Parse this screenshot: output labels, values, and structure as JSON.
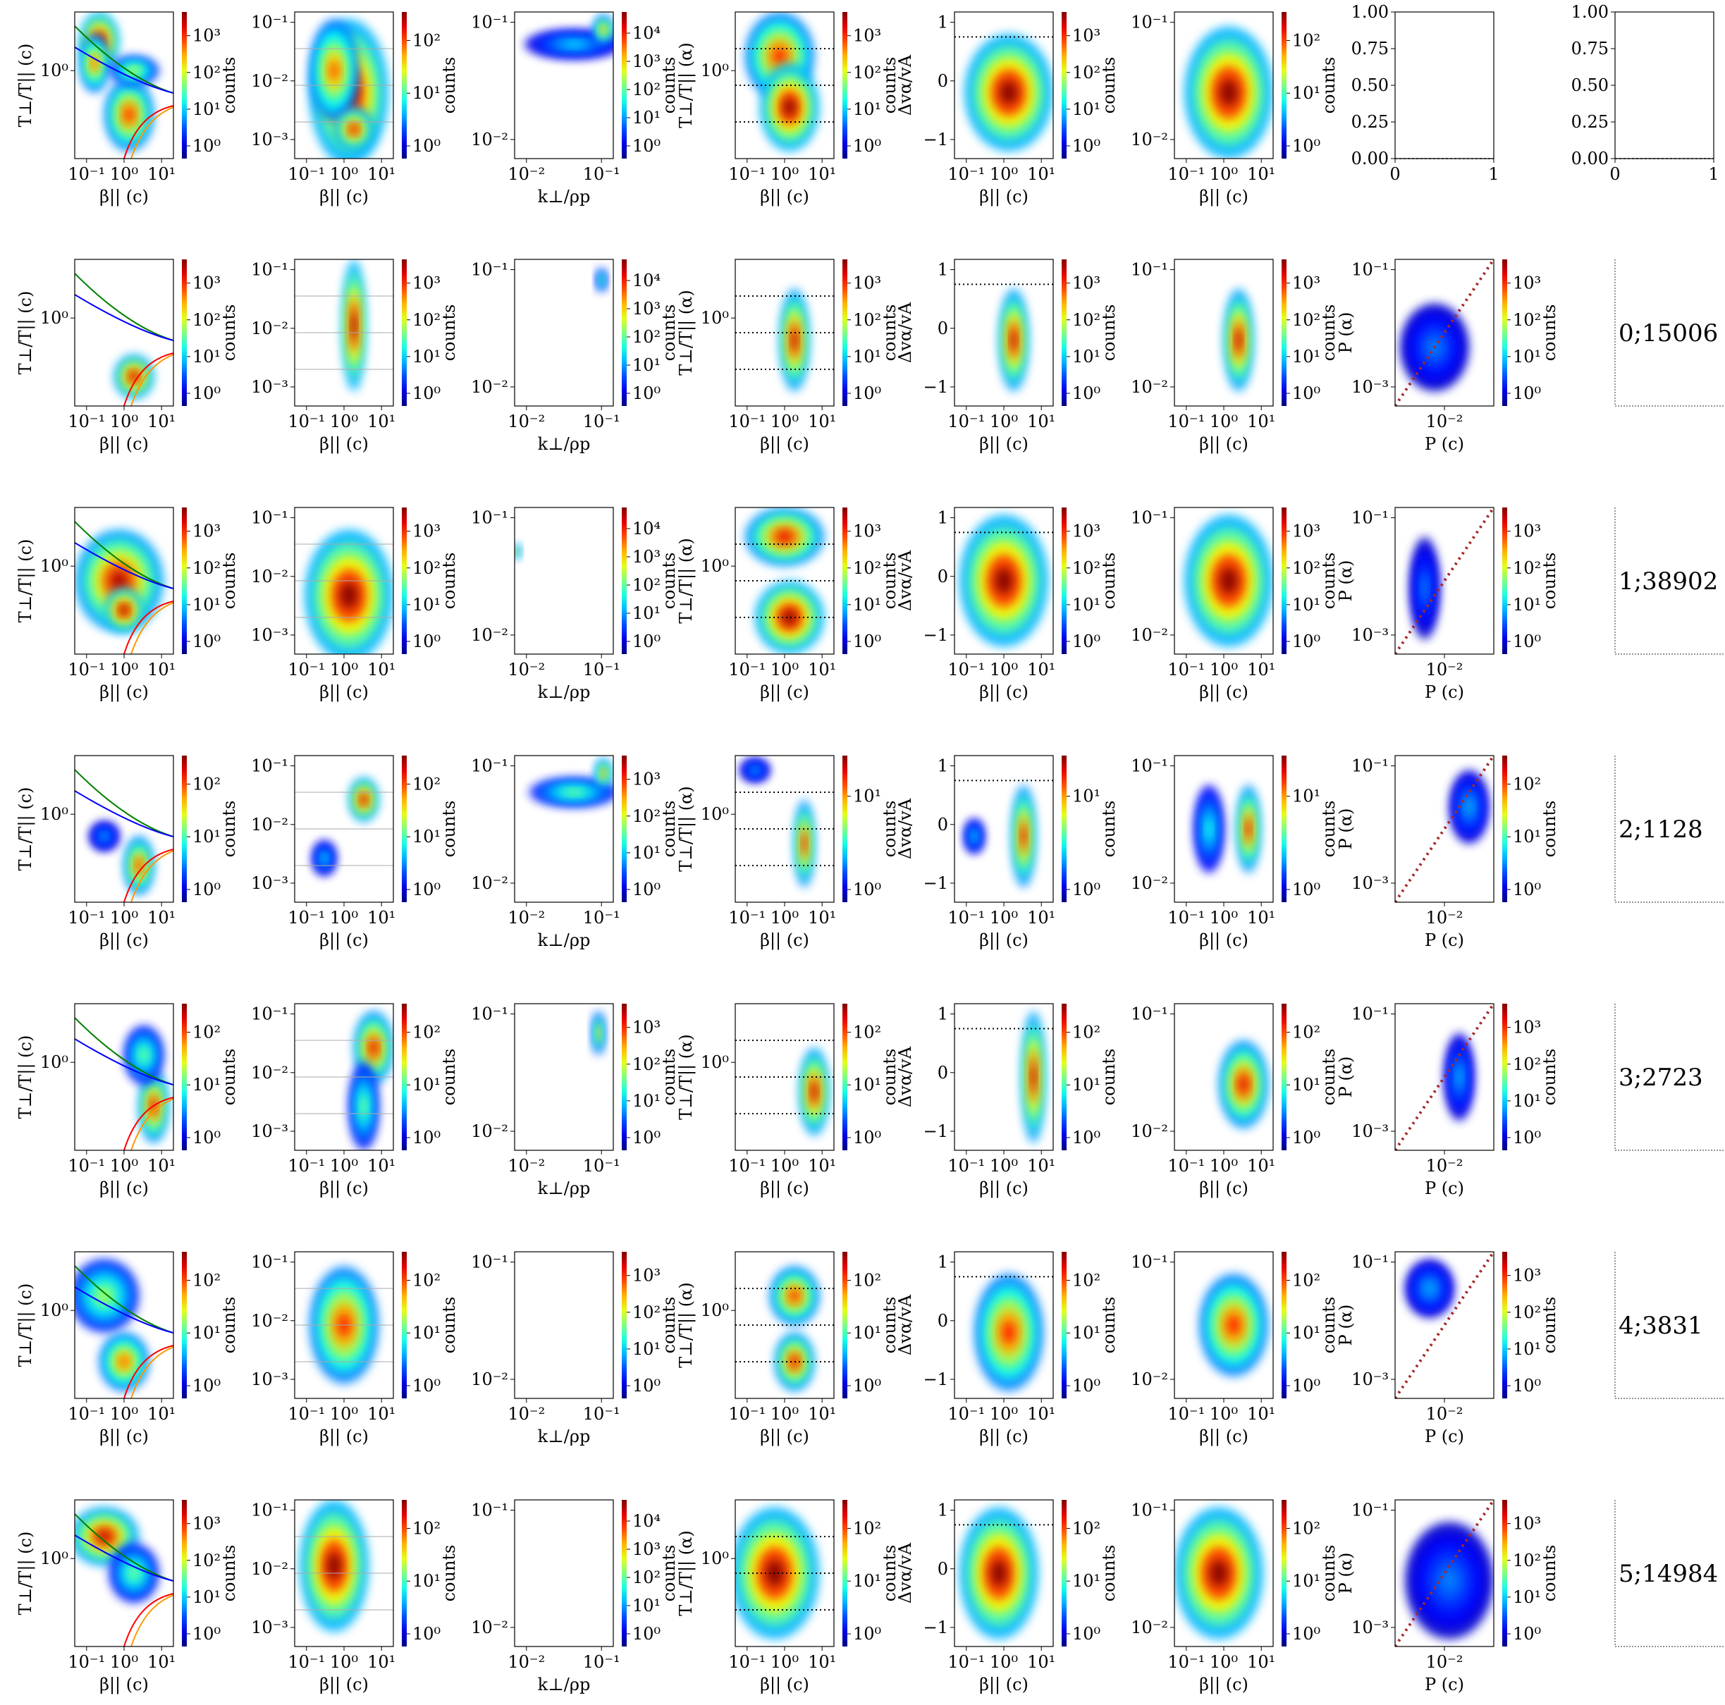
{
  "figure": {
    "row_labels": [
      "0;15006",
      "1;38902",
      "2;1128",
      "3;2723",
      "4;3831",
      "5;14984"
    ]
  },
  "chart_data": {
    "type": "heatmap",
    "colormap": "jet",
    "grid": false,
    "columns": [
      {
        "xlabel": "β|| (c)",
        "ylabel": "T⊥/T|| (c)",
        "xticks": [
          "10⁻¹",
          "10⁰",
          "10¹"
        ],
        "yticks": [
          "10⁰"
        ],
        "colorbar_label": "counts",
        "overlay": "instability threshold curves (green, blue, red, orange)"
      },
      {
        "xlabel": "β|| (c)",
        "ylabel": "",
        "xticks": [
          "10⁻¹",
          "10⁰",
          "10¹"
        ],
        "yticks": [
          "10⁻¹",
          "10⁻²",
          "10⁻³"
        ],
        "colorbar_label": "counts",
        "overlay": "horizontal grey lines"
      },
      {
        "xlabel": "k⊥/ρp",
        "ylabel": "",
        "xticks": [
          "10⁻²",
          "10⁻¹"
        ],
        "yticks": [
          "10⁻¹",
          "10⁻²"
        ],
        "colorbar_label": "counts"
      },
      {
        "xlabel": "β|| (c)",
        "ylabel": "T⊥/T|| (α)",
        "xticks": [
          "10⁻¹",
          "10⁰",
          "10¹"
        ],
        "yticks": [
          "10⁰"
        ],
        "colorbar_label": "counts",
        "overlay": "dotted horizontal lines"
      },
      {
        "xlabel": "β|| (c)",
        "ylabel": "Δvα/vA",
        "xticks": [
          "10⁻¹",
          "10⁰",
          "10¹"
        ],
        "yticks": [
          "1",
          "0",
          "−1"
        ],
        "colorbar_label": "counts",
        "overlay": "dotted line at 1"
      },
      {
        "xlabel": "β|| (c)",
        "ylabel": "",
        "xticks": [
          "10⁻¹",
          "10⁰",
          "10¹"
        ],
        "yticks": [
          "10⁻¹",
          "10⁻²"
        ],
        "colorbar_label": "counts"
      },
      {
        "xlabel": "P (c)",
        "ylabel": "P (α)",
        "xticks": [
          "10⁻²"
        ],
        "yticks": [
          "10⁻¹",
          "10⁻³"
        ],
        "colorbar_label": "counts",
        "overlay": "dotted diagonal y = x"
      }
    ],
    "empty_axes": {
      "xticks": [
        "0",
        "1"
      ],
      "yticks": [
        "0.00",
        "0.25",
        "0.50",
        "0.75",
        "1.00"
      ]
    },
    "rows": [
      {
        "label": "",
        "col7": "empty",
        "colorbar_max_exp": [
          3,
          2,
          4,
          3,
          3,
          2
        ]
      },
      {
        "label": "0;15006",
        "colorbar_max_exp": [
          3,
          3,
          4,
          3,
          3,
          3,
          3
        ]
      },
      {
        "label": "1;38902",
        "colorbar_max_exp": [
          3,
          3,
          4,
          3,
          3,
          3,
          3
        ]
      },
      {
        "label": "2;1128",
        "colorbar_max_exp": [
          2,
          2,
          3,
          1,
          1,
          1,
          2
        ]
      },
      {
        "label": "3;2723",
        "colorbar_max_exp": [
          2,
          2,
          3,
          2,
          2,
          2,
          3
        ]
      },
      {
        "label": "4;3831",
        "colorbar_max_exp": [
          2,
          2,
          3,
          2,
          2,
          2,
          3
        ]
      },
      {
        "label": "5;14984",
        "colorbar_max_exp": [
          3,
          2,
          4,
          2,
          2,
          2,
          3
        ]
      }
    ],
    "blobs": [
      [
        [
          [
            0.25,
            0.2,
            0.2,
            0.2,
            1
          ],
          [
            0.2,
            0.35,
            0.15,
            0.2,
            0.8
          ],
          [
            0.55,
            0.7,
            0.25,
            0.25,
            0.85
          ],
          [
            0.6,
            0.4,
            0.25,
            0.1,
            0.6
          ]
        ],
        [
          [
            0.55,
            0.55,
            0.4,
            0.5,
            1
          ],
          [
            0.4,
            0.4,
            0.25,
            0.35,
            0.8
          ],
          [
            0.6,
            0.8,
            0.2,
            0.15,
            0.9
          ]
        ],
        [
          [
            0.6,
            0.22,
            0.5,
            0.1,
            0.35
          ],
          [
            0.9,
            0.12,
            0.1,
            0.1,
            0.75
          ]
        ],
        [
          [
            0.45,
            0.3,
            0.35,
            0.3,
            0.85
          ],
          [
            0.55,
            0.65,
            0.3,
            0.3,
            1
          ]
        ],
        [
          [
            0.55,
            0.55,
            0.45,
            0.4,
            1
          ]
        ],
        [
          [
            0.55,
            0.55,
            0.45,
            0.45,
            1
          ]
        ]
      ],
      [
        [
          [
            0.6,
            0.8,
            0.2,
            0.15,
            0.95
          ]
        ],
        [
          [
            0.6,
            0.45,
            0.12,
            0.45,
            1
          ]
        ],
        [
          [
            0.88,
            0.14,
            0.05,
            0.08,
            0.55
          ]
        ],
        [
          [
            0.6,
            0.55,
            0.15,
            0.35,
            0.95
          ]
        ],
        [
          [
            0.6,
            0.55,
            0.15,
            0.35,
            0.95
          ]
        ],
        [
          [
            0.65,
            0.55,
            0.15,
            0.35,
            0.95
          ]
        ],
        [
          [
            0.4,
            0.6,
            0.35,
            0.3,
            0.25
          ]
        ]
      ],
      [
        [
          [
            0.45,
            0.5,
            0.45,
            0.35,
            0.95
          ],
          [
            0.5,
            0.7,
            0.2,
            0.15,
            1
          ]
        ],
        [
          [
            0.55,
            0.6,
            0.45,
            0.45,
            1
          ]
        ],
        [
          [
            0.02,
            0.3,
            0.04,
            0.05,
            0.8
          ]
        ],
        [
          [
            0.5,
            0.2,
            0.4,
            0.2,
            0.9
          ],
          [
            0.55,
            0.75,
            0.35,
            0.25,
            1
          ]
        ],
        [
          [
            0.5,
            0.5,
            0.45,
            0.45,
            1
          ]
        ],
        [
          [
            0.55,
            0.5,
            0.45,
            0.45,
            1
          ]
        ],
        [
          [
            0.3,
            0.55,
            0.15,
            0.35,
            0.25
          ]
        ]
      ],
      [
        [
          [
            0.65,
            0.75,
            0.15,
            0.2,
            0.85
          ],
          [
            0.3,
            0.55,
            0.15,
            0.1,
            0.3
          ]
        ],
        [
          [
            0.7,
            0.3,
            0.15,
            0.15,
            0.95
          ],
          [
            0.3,
            0.7,
            0.12,
            0.12,
            0.35
          ]
        ],
        [
          [
            0.6,
            0.25,
            0.45,
            0.1,
            0.5
          ],
          [
            0.9,
            0.12,
            0.08,
            0.1,
            0.8
          ]
        ],
        [
          [
            0.7,
            0.6,
            0.1,
            0.3,
            0.9
          ],
          [
            0.2,
            0.1,
            0.15,
            0.08,
            0.3
          ]
        ],
        [
          [
            0.7,
            0.55,
            0.12,
            0.35,
            0.9
          ],
          [
            0.2,
            0.55,
            0.1,
            0.12,
            0.35
          ]
        ],
        [
          [
            0.75,
            0.5,
            0.12,
            0.3,
            0.9
          ],
          [
            0.35,
            0.5,
            0.15,
            0.3,
            0.4
          ]
        ],
        [
          [
            0.75,
            0.35,
            0.2,
            0.25,
            0.3
          ]
        ]
      ],
      [
        [
          [
            0.8,
            0.7,
            0.15,
            0.25,
            0.9
          ],
          [
            0.7,
            0.35,
            0.2,
            0.2,
            0.5
          ]
        ],
        [
          [
            0.8,
            0.3,
            0.2,
            0.25,
            0.9
          ],
          [
            0.7,
            0.7,
            0.15,
            0.3,
            0.5
          ]
        ],
        [
          [
            0.85,
            0.2,
            0.06,
            0.15,
            0.7
          ]
        ],
        [
          [
            0.8,
            0.6,
            0.15,
            0.3,
            0.95
          ]
        ],
        [
          [
            0.8,
            0.5,
            0.12,
            0.45,
            0.95
          ]
        ],
        [
          [
            0.7,
            0.55,
            0.25,
            0.3,
            0.9
          ]
        ],
        [
          [
            0.65,
            0.5,
            0.15,
            0.3,
            0.3
          ]
        ]
      ],
      [
        [
          [
            0.3,
            0.3,
            0.35,
            0.25,
            0.55
          ],
          [
            0.5,
            0.75,
            0.25,
            0.2,
            0.8
          ]
        ],
        [
          [
            0.5,
            0.5,
            0.35,
            0.4,
            0.85
          ]
        ],
        [],
        [
          [
            0.6,
            0.3,
            0.25,
            0.2,
            0.85
          ],
          [
            0.6,
            0.75,
            0.2,
            0.2,
            0.9
          ]
        ],
        [
          [
            0.55,
            0.55,
            0.35,
            0.4,
            0.85
          ]
        ],
        [
          [
            0.6,
            0.5,
            0.35,
            0.35,
            0.85
          ]
        ],
        [
          [
            0.35,
            0.25,
            0.25,
            0.2,
            0.3
          ]
        ]
      ],
      [
        [
          [
            0.3,
            0.25,
            0.35,
            0.2,
            0.95
          ],
          [
            0.6,
            0.5,
            0.25,
            0.2,
            0.5
          ]
        ],
        [
          [
            0.4,
            0.45,
            0.35,
            0.45,
            1
          ]
        ],
        [],
        [
          [
            0.4,
            0.5,
            0.45,
            0.45,
            1
          ]
        ],
        [
          [
            0.45,
            0.5,
            0.4,
            0.45,
            1
          ]
        ],
        [
          [
            0.45,
            0.5,
            0.45,
            0.45,
            1
          ]
        ],
        [
          [
            0.55,
            0.55,
            0.45,
            0.4,
            0.25
          ]
        ]
      ]
    ]
  }
}
